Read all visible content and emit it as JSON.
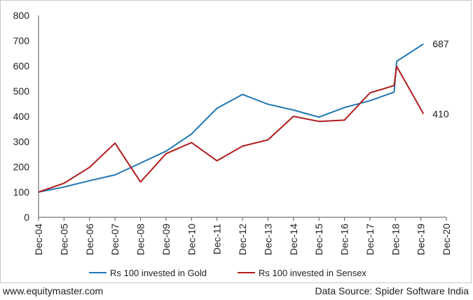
{
  "chart_data": {
    "type": "line",
    "title": "",
    "xlabel": "",
    "ylabel": "",
    "ylim": [
      0,
      800
    ],
    "yticks": [
      0,
      100,
      200,
      300,
      400,
      500,
      600,
      700,
      800
    ],
    "categories": [
      "Dec-04",
      "Dec-05",
      "Dec-06",
      "Dec-07",
      "Dec-08",
      "Dec-09",
      "Dec-10",
      "Dec-11",
      "Dec-12",
      "Dec-13",
      "Dec-14",
      "Dec-15",
      "Dec-16",
      "Dec-17",
      "Dec-18",
      "Dec-19",
      "Dec-20"
    ],
    "grid": false,
    "legend_position": "bottom",
    "series": [
      {
        "name": "Rs 100 invested in Gold",
        "color": "#1f77b4",
        "points": [
          {
            "x": 0,
            "y": 100
          },
          {
            "x": 1,
            "y": 120
          },
          {
            "x": 2,
            "y": 145
          },
          {
            "x": 3,
            "y": 168
          },
          {
            "x": 4,
            "y": 215
          },
          {
            "x": 5,
            "y": 262
          },
          {
            "x": 6,
            "y": 330
          },
          {
            "x": 7,
            "y": 432
          },
          {
            "x": 8,
            "y": 487
          },
          {
            "x": 9,
            "y": 448
          },
          {
            "x": 10,
            "y": 425
          },
          {
            "x": 11,
            "y": 397
          },
          {
            "x": 12,
            "y": 435
          },
          {
            "x": 13,
            "y": 462
          },
          {
            "x": 13.95,
            "y": 496
          },
          {
            "x": 14.05,
            "y": 618
          },
          {
            "x": 15.1,
            "y": 687
          }
        ],
        "end_label": "687"
      },
      {
        "name": "Rs 100 invested in Sensex",
        "color": "#b01c1c",
        "points": [
          {
            "x": 0,
            "y": 100
          },
          {
            "x": 1,
            "y": 135
          },
          {
            "x": 2,
            "y": 198
          },
          {
            "x": 3,
            "y": 294
          },
          {
            "x": 4,
            "y": 140
          },
          {
            "x": 5,
            "y": 252
          },
          {
            "x": 6,
            "y": 296
          },
          {
            "x": 7,
            "y": 224
          },
          {
            "x": 8,
            "y": 282
          },
          {
            "x": 9,
            "y": 307
          },
          {
            "x": 10,
            "y": 400
          },
          {
            "x": 11,
            "y": 380
          },
          {
            "x": 12,
            "y": 385
          },
          {
            "x": 13,
            "y": 493
          },
          {
            "x": 13.95,
            "y": 522
          },
          {
            "x": 14.05,
            "y": 598
          },
          {
            "x": 15.1,
            "y": 410
          }
        ],
        "end_label": "410"
      }
    ]
  },
  "footer": {
    "source_site": "www.equitymaster.com",
    "data_source": "Data Source: Spider Software India"
  }
}
